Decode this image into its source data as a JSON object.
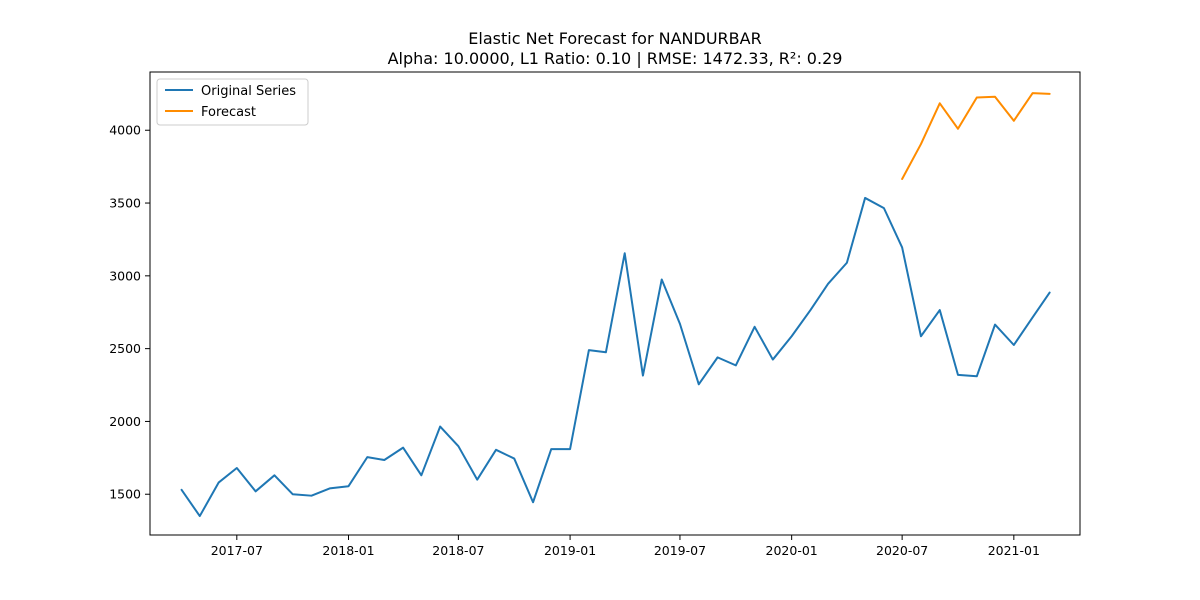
{
  "chart_data": {
    "type": "line",
    "title": "Elastic Net Forecast for NANDURBAR",
    "subtitle": "Alpha: 10.0000, L1 Ratio: 0.10 | RMSE: 1472.33, R²: 0.29",
    "xlabel": "",
    "ylabel": "",
    "xlim": [
      "2017-02-08",
      "2021-04-20"
    ],
    "ylim": [
      1220,
      4400
    ],
    "x_ticks": [
      "2017-07",
      "2018-01",
      "2018-07",
      "2019-01",
      "2019-07",
      "2020-01",
      "2020-07",
      "2021-01"
    ],
    "y_ticks": [
      1500,
      2000,
      2500,
      3000,
      3500,
      4000
    ],
    "grid": false,
    "legend_position": "top-left",
    "series": [
      {
        "name": "Original Series",
        "color": "#1f77b4",
        "x": [
          "2017-04",
          "2017-05",
          "2017-06",
          "2017-07",
          "2017-08",
          "2017-09",
          "2017-10",
          "2017-11",
          "2017-12",
          "2018-01",
          "2018-02",
          "2018-03",
          "2018-04",
          "2018-05",
          "2018-06",
          "2018-07",
          "2018-08",
          "2018-09",
          "2018-10",
          "2018-11",
          "2018-12",
          "2019-01",
          "2019-02",
          "2019-03",
          "2019-04",
          "2019-05",
          "2019-06",
          "2019-07",
          "2019-08",
          "2019-09",
          "2019-10",
          "2019-11",
          "2019-12",
          "2020-01",
          "2020-02",
          "2020-03",
          "2020-04",
          "2020-05",
          "2020-06",
          "2020-07",
          "2020-08",
          "2020-09",
          "2020-10",
          "2020-11",
          "2020-12",
          "2021-01",
          "2021-02",
          "2021-03"
        ],
        "values": [
          1530,
          1350,
          1580,
          1680,
          1520,
          1630,
          1500,
          1490,
          1540,
          1555,
          1755,
          1735,
          1820,
          1630,
          1965,
          1830,
          1600,
          1805,
          1745,
          1445,
          1810,
          1810,
          2490,
          2475,
          3155,
          2315,
          2975,
          2670,
          2255,
          2440,
          2385,
          2650,
          2425,
          2585,
          2765,
          2945,
          3090,
          3535,
          3465,
          3195,
          2585,
          2765,
          2320,
          2310,
          2665,
          2525,
          2715,
          2885
        ]
      },
      {
        "name": "Forecast",
        "color": "#ff8c00",
        "x": [
          "2020-07",
          "2020-08",
          "2020-09",
          "2020-10",
          "2020-11",
          "2020-12",
          "2021-01",
          "2021-02",
          "2021-03"
        ],
        "values": [
          3665,
          3905,
          4185,
          4010,
          4225,
          4230,
          4065,
          4255,
          4250
        ]
      }
    ]
  }
}
